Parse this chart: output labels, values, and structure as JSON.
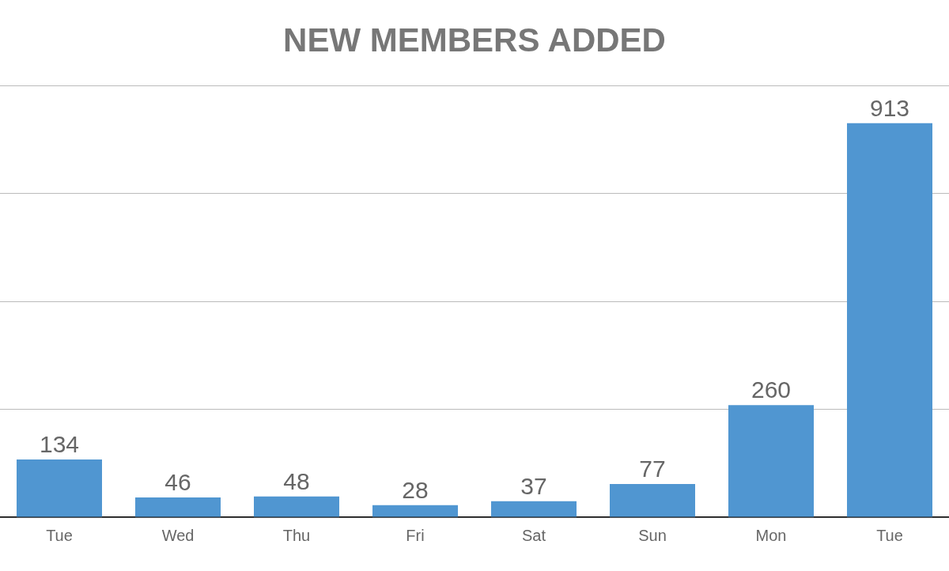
{
  "chart_data": {
    "type": "bar",
    "title": "NEW MEMBERS ADDED",
    "categories": [
      "Tue",
      "Wed",
      "Thu",
      "Fri",
      "Sat",
      "Sun",
      "Mon",
      "Tue"
    ],
    "values": [
      134,
      46,
      48,
      28,
      37,
      77,
      260,
      913
    ],
    "color": "#5096d1",
    "ylim": [
      0,
      1000
    ],
    "yticks": [
      0,
      250,
      500,
      750,
      1000
    ],
    "grid": "y",
    "tick_labels": "x",
    "data_labels": true
  }
}
